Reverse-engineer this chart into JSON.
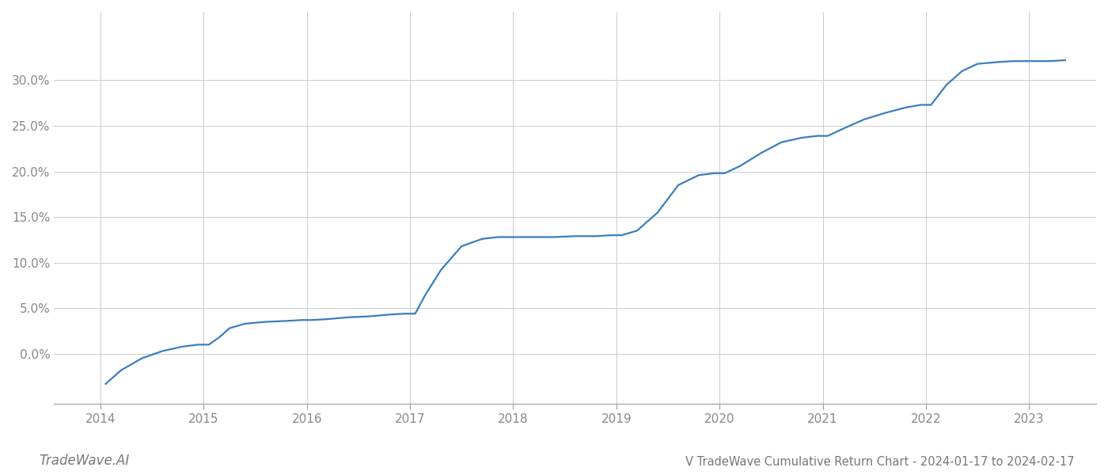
{
  "title": "V TradeWave Cumulative Return Chart - 2024-01-17 to 2024-02-17",
  "watermark": "TradeWave.AI",
  "line_color": "#3a7ebf",
  "background_color": "#ffffff",
  "grid_color": "#cccccc",
  "x_years": [
    2014,
    2015,
    2016,
    2017,
    2018,
    2019,
    2020,
    2021,
    2022,
    2023
  ],
  "data_x": [
    2014.05,
    2014.2,
    2014.4,
    2014.6,
    2014.8,
    2014.95,
    2015.05,
    2015.15,
    2015.25,
    2015.4,
    2015.6,
    2015.8,
    2015.95,
    2016.05,
    2016.2,
    2016.4,
    2016.6,
    2016.8,
    2016.95,
    2017.05,
    2017.15,
    2017.3,
    2017.5,
    2017.7,
    2017.85,
    2017.95,
    2018.05,
    2018.2,
    2018.4,
    2018.6,
    2018.8,
    2018.95,
    2019.05,
    2019.2,
    2019.4,
    2019.6,
    2019.8,
    2019.95,
    2020.05,
    2020.2,
    2020.4,
    2020.6,
    2020.8,
    2020.95,
    2021.05,
    2021.2,
    2021.4,
    2021.6,
    2021.8,
    2021.95,
    2022.05,
    2022.2,
    2022.35,
    2022.5,
    2022.7,
    2022.85,
    2022.95,
    2023.05,
    2023.2,
    2023.35
  ],
  "data_y": [
    -0.033,
    -0.018,
    -0.005,
    0.003,
    0.008,
    0.01,
    0.01,
    0.018,
    0.028,
    0.033,
    0.035,
    0.036,
    0.037,
    0.037,
    0.038,
    0.04,
    0.041,
    0.043,
    0.044,
    0.044,
    0.065,
    0.092,
    0.118,
    0.126,
    0.128,
    0.128,
    0.128,
    0.128,
    0.128,
    0.129,
    0.129,
    0.13,
    0.13,
    0.135,
    0.155,
    0.185,
    0.196,
    0.198,
    0.198,
    0.206,
    0.22,
    0.232,
    0.237,
    0.239,
    0.239,
    0.247,
    0.257,
    0.264,
    0.27,
    0.273,
    0.273,
    0.295,
    0.31,
    0.318,
    0.32,
    0.321,
    0.321,
    0.321,
    0.321,
    0.322
  ],
  "ylim": [
    -0.055,
    0.375
  ],
  "yticks": [
    0.0,
    0.05,
    0.1,
    0.15,
    0.2,
    0.25,
    0.3
  ],
  "xlim_left": 2013.55,
  "xlim_right": 2023.65,
  "title_fontsize": 10.5,
  "watermark_fontsize": 12,
  "tick_label_color": "#888888",
  "line_width": 1.6
}
